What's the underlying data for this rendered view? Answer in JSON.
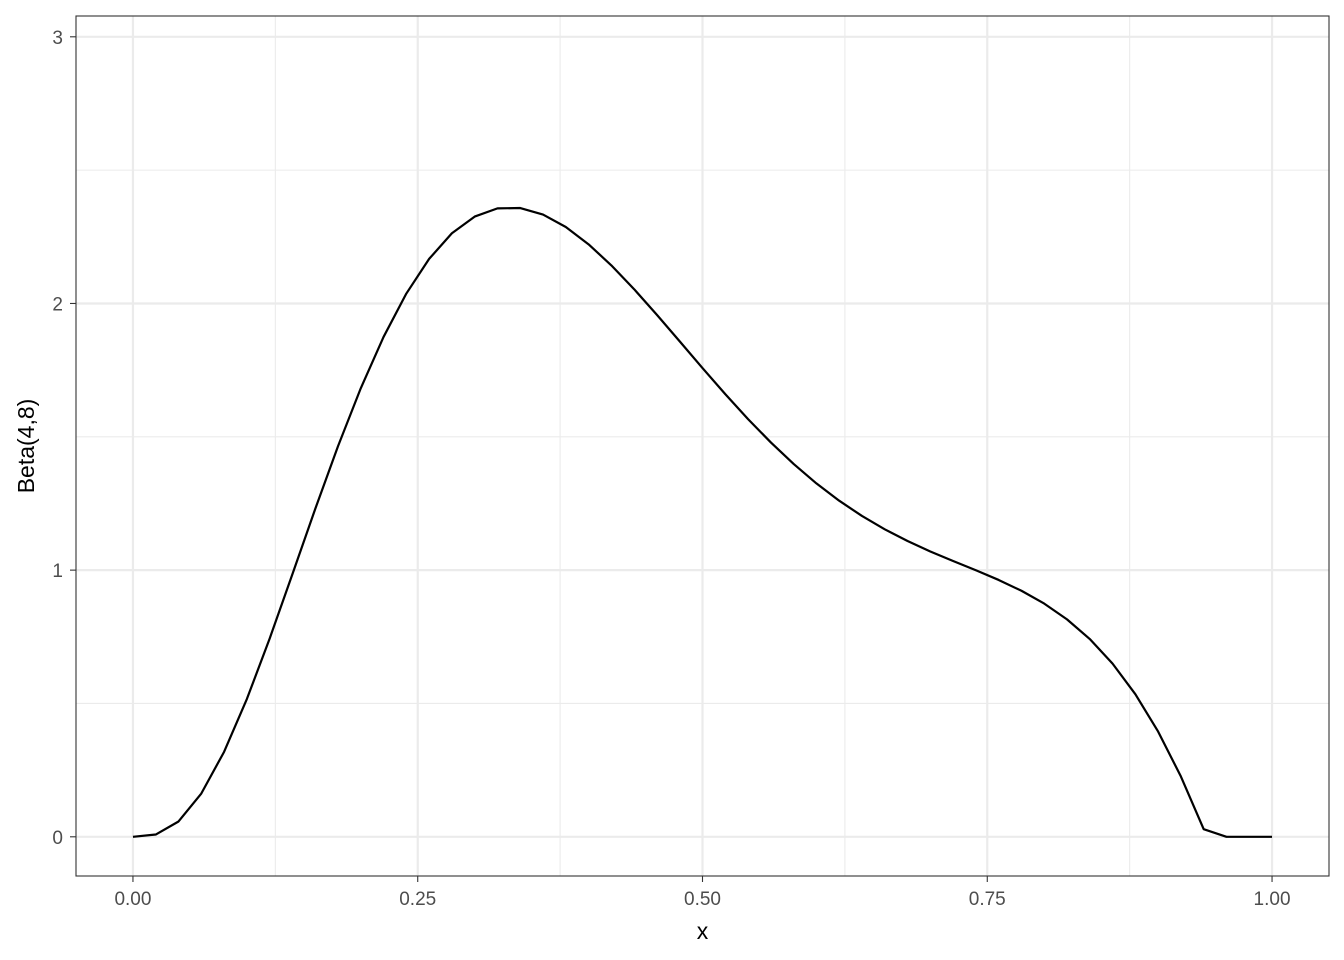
{
  "chart_data": {
    "type": "line",
    "title": "",
    "xlabel": "x",
    "ylabel": "Beta(4,8)",
    "xlim": [
      -0.05,
      1.05
    ],
    "ylim": [
      -0.147,
      3.078
    ],
    "x_ticks": [
      0.0,
      0.25,
      0.5,
      0.75,
      1.0
    ],
    "x_tick_labels": [
      "0.00",
      "0.25",
      "0.50",
      "0.75",
      "1.00"
    ],
    "x_minor_ticks": [
      0.125,
      0.375,
      0.625,
      0.875
    ],
    "y_ticks": [
      0,
      1,
      2,
      3
    ],
    "y_tick_labels": [
      "0",
      "1",
      "2",
      "3"
    ],
    "y_minor_ticks": [
      0.5,
      1.5,
      2.5
    ],
    "grid": true,
    "legend": "none",
    "series": [
      {
        "color": "#000000",
        "x": [
          0.0,
          0.02,
          0.04,
          0.06,
          0.08,
          0.1,
          0.12,
          0.14,
          0.16,
          0.18,
          0.2,
          0.22,
          0.24,
          0.26,
          0.28,
          0.3,
          0.32,
          0.34,
          0.36,
          0.38,
          0.4,
          0.42,
          0.44,
          0.46,
          0.48,
          0.5,
          0.52,
          0.54,
          0.56,
          0.58,
          0.6,
          0.62,
          0.64,
          0.66,
          0.68,
          0.7,
          0.72,
          0.74,
          0.76,
          0.78,
          0.8,
          0.82,
          0.84,
          0.86,
          0.88,
          0.9,
          0.92,
          0.94,
          0.96,
          0.98,
          1.0
        ],
        "y": [
          0.0,
          0.0085,
          0.0574,
          0.1623,
          0.3186,
          0.5166,
          0.7433,
          0.9851,
          1.2292,
          1.4646,
          1.682,
          1.8745,
          2.0372,
          2.1671,
          2.2632,
          2.3258,
          2.3566,
          2.3579,
          2.3333,
          2.2867,
          2.2218,
          2.1428,
          2.0535,
          1.9573,
          1.8578,
          1.7578,
          1.6599,
          1.5664,
          1.4788,
          1.3982,
          1.3252,
          1.2603,
          1.2031,
          1.153,
          1.1091,
          1.07,
          1.0342,
          0.9994,
          0.9632,
          0.9226,
          0.8745,
          0.8154,
          0.7416,
          0.6493,
          0.5348,
          0.3946,
          0.226,
          0.0286,
          0.0,
          0.0,
          0.0
        ]
      }
    ]
  }
}
